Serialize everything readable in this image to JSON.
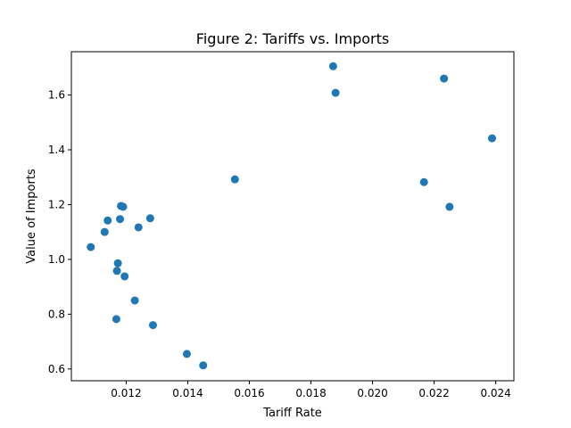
{
  "chart_data": {
    "type": "scatter",
    "title": "Figure 2: Tariffs vs. Imports",
    "xlabel": "Tariff Rate",
    "ylabel": "Value of Imports",
    "xlim": [
      0.01022,
      0.02459
    ],
    "ylim": [
      0.557,
      1.758
    ],
    "xticks": [
      0.012,
      0.014,
      0.016,
      0.018,
      0.02,
      0.022,
      0.024
    ],
    "xtick_labels": [
      "0.012",
      "0.014",
      "0.016",
      "0.018",
      "0.020",
      "0.022",
      "0.024"
    ],
    "yticks": [
      0.6,
      0.8,
      1.0,
      1.2,
      1.4,
      1.6
    ],
    "ytick_labels": [
      "0.6",
      "0.8",
      "1.0",
      "1.2",
      "1.4",
      "1.6"
    ],
    "grid": false,
    "marker_color": "#1f77b4",
    "points": [
      {
        "x": 0.01085,
        "y": 1.045
      },
      {
        "x": 0.0113,
        "y": 1.1
      },
      {
        "x": 0.0114,
        "y": 1.142
      },
      {
        "x": 0.01168,
        "y": 0.782
      },
      {
        "x": 0.0117,
        "y": 0.958
      },
      {
        "x": 0.01173,
        "y": 0.986
      },
      {
        "x": 0.0118,
        "y": 1.147
      },
      {
        "x": 0.01183,
        "y": 1.195
      },
      {
        "x": 0.0119,
        "y": 1.192
      },
      {
        "x": 0.01195,
        "y": 0.938
      },
      {
        "x": 0.01228,
        "y": 0.85
      },
      {
        "x": 0.0124,
        "y": 1.117
      },
      {
        "x": 0.01278,
        "y": 1.15
      },
      {
        "x": 0.01287,
        "y": 0.76
      },
      {
        "x": 0.01397,
        "y": 0.655
      },
      {
        "x": 0.0145,
        "y": 0.613
      },
      {
        "x": 0.01553,
        "y": 1.292
      },
      {
        "x": 0.01872,
        "y": 1.705
      },
      {
        "x": 0.0188,
        "y": 1.608
      },
      {
        "x": 0.02167,
        "y": 1.282
      },
      {
        "x": 0.02232,
        "y": 1.66
      },
      {
        "x": 0.0225,
        "y": 1.192
      },
      {
        "x": 0.02388,
        "y": 1.442
      }
    ]
  }
}
